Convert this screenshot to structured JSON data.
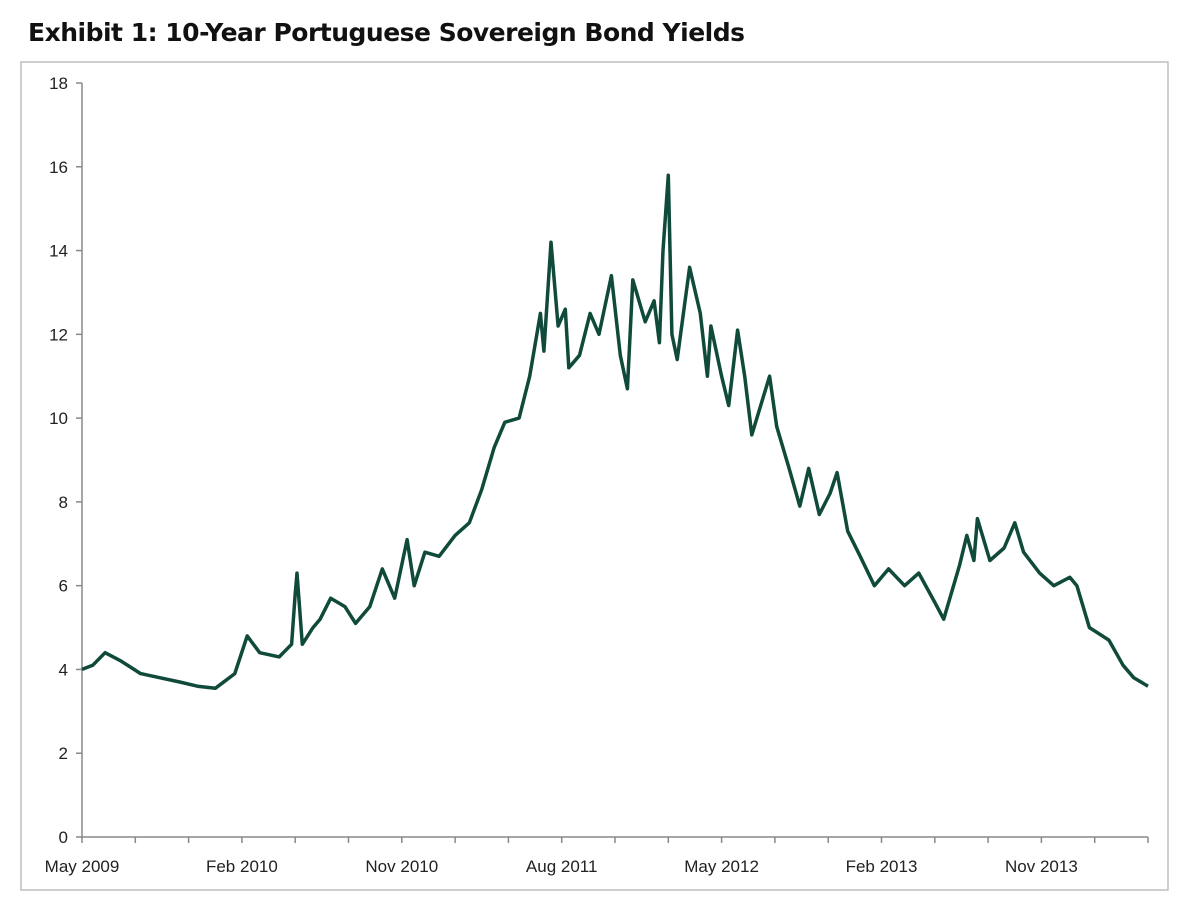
{
  "chart_data": {
    "type": "line",
    "title": "Exhibit 1: 10-Year Portuguese Sovereign Bond Yields",
    "xlabel": "",
    "ylabel": "",
    "x_unit": "months since May 2009",
    "xlim": [
      0,
      60
    ],
    "ylim": [
      0,
      18
    ],
    "y_ticks": [
      0,
      2,
      4,
      6,
      8,
      10,
      12,
      14,
      16,
      18
    ],
    "x_ticks": [
      {
        "value": 0,
        "label": "May 2009"
      },
      {
        "value": 9,
        "label": "Feb 2010"
      },
      {
        "value": 18,
        "label": "Nov 2010"
      },
      {
        "value": 27,
        "label": "Aug 2011"
      },
      {
        "value": 36,
        "label": "May 2012"
      },
      {
        "value": 45,
        "label": "Feb 2013"
      },
      {
        "value": 54,
        "label": "Nov 2013"
      }
    ],
    "grid": false,
    "legend": "none",
    "series": [
      {
        "name": "10-Year Portuguese Sovereign Bond Yield",
        "color": "#0f4a3a",
        "points": [
          [
            0,
            4.0
          ],
          [
            0.6,
            4.1
          ],
          [
            1.3,
            4.4
          ],
          [
            2.2,
            4.2
          ],
          [
            3.3,
            3.9
          ],
          [
            4.4,
            3.8
          ],
          [
            5.5,
            3.7
          ],
          [
            6.5,
            3.6
          ],
          [
            7.5,
            3.55
          ],
          [
            8.6,
            3.9
          ],
          [
            9.3,
            4.8
          ],
          [
            10,
            4.4
          ],
          [
            11.1,
            4.3
          ],
          [
            11.8,
            4.6
          ],
          [
            12,
            5.8
          ],
          [
            12.1,
            6.3
          ],
          [
            12.4,
            4.6
          ],
          [
            13,
            5.0
          ],
          [
            13.4,
            5.2
          ],
          [
            14,
            5.7
          ],
          [
            14.8,
            5.5
          ],
          [
            15.4,
            5.1
          ],
          [
            16.2,
            5.5
          ],
          [
            16.9,
            6.4
          ],
          [
            17.6,
            5.7
          ],
          [
            18.3,
            7.1
          ],
          [
            18.7,
            6.0
          ],
          [
            19.3,
            6.8
          ],
          [
            20.1,
            6.7
          ],
          [
            21,
            7.2
          ],
          [
            21.8,
            7.5
          ],
          [
            22.5,
            8.3
          ],
          [
            23.2,
            9.3
          ],
          [
            23.8,
            9.9
          ],
          [
            24.6,
            10.0
          ],
          [
            25.2,
            11.0
          ],
          [
            25.8,
            12.5
          ],
          [
            26,
            11.6
          ],
          [
            26.4,
            14.2
          ],
          [
            26.8,
            12.2
          ],
          [
            27.2,
            12.6
          ],
          [
            27.4,
            11.2
          ],
          [
            28,
            11.5
          ],
          [
            28.6,
            12.5
          ],
          [
            29.1,
            12.0
          ],
          [
            29.8,
            13.4
          ],
          [
            30.3,
            11.5
          ],
          [
            30.7,
            10.7
          ],
          [
            31,
            13.3
          ],
          [
            31.7,
            12.3
          ],
          [
            32.2,
            12.8
          ],
          [
            32.5,
            11.8
          ],
          [
            32.7,
            14.0
          ],
          [
            33,
            15.8
          ],
          [
            33.2,
            12.0
          ],
          [
            33.5,
            11.4
          ],
          [
            34.2,
            13.6
          ],
          [
            34.8,
            12.5
          ],
          [
            35.2,
            11.0
          ],
          [
            35.4,
            12.2
          ],
          [
            36,
            11.0
          ],
          [
            36.4,
            10.3
          ],
          [
            36.9,
            12.1
          ],
          [
            37.3,
            11.0
          ],
          [
            37.7,
            9.6
          ],
          [
            38.2,
            10.3
          ],
          [
            38.7,
            11.0
          ],
          [
            39.1,
            9.8
          ],
          [
            39.8,
            8.8
          ],
          [
            40.4,
            7.9
          ],
          [
            40.9,
            8.8
          ],
          [
            41.5,
            7.7
          ],
          [
            42.1,
            8.2
          ],
          [
            42.5,
            8.7
          ],
          [
            43.1,
            7.3
          ],
          [
            43.8,
            6.7
          ],
          [
            44.6,
            6.0
          ],
          [
            45.4,
            6.4
          ],
          [
            46.3,
            6.0
          ],
          [
            47.1,
            6.3
          ],
          [
            48,
            5.6
          ],
          [
            48.5,
            5.2
          ],
          [
            49.4,
            6.5
          ],
          [
            49.8,
            7.2
          ],
          [
            50.2,
            6.6
          ],
          [
            50.4,
            7.6
          ],
          [
            51.1,
            6.6
          ],
          [
            51.9,
            6.9
          ],
          [
            52.5,
            7.5
          ],
          [
            53,
            6.8
          ],
          [
            53.9,
            6.3
          ],
          [
            54.7,
            6.0
          ],
          [
            55.6,
            6.2
          ],
          [
            56,
            6.0
          ],
          [
            56.7,
            5.0
          ],
          [
            57.8,
            4.7
          ],
          [
            58.6,
            4.1
          ],
          [
            59.2,
            3.8
          ],
          [
            60,
            3.6
          ]
        ]
      }
    ]
  }
}
